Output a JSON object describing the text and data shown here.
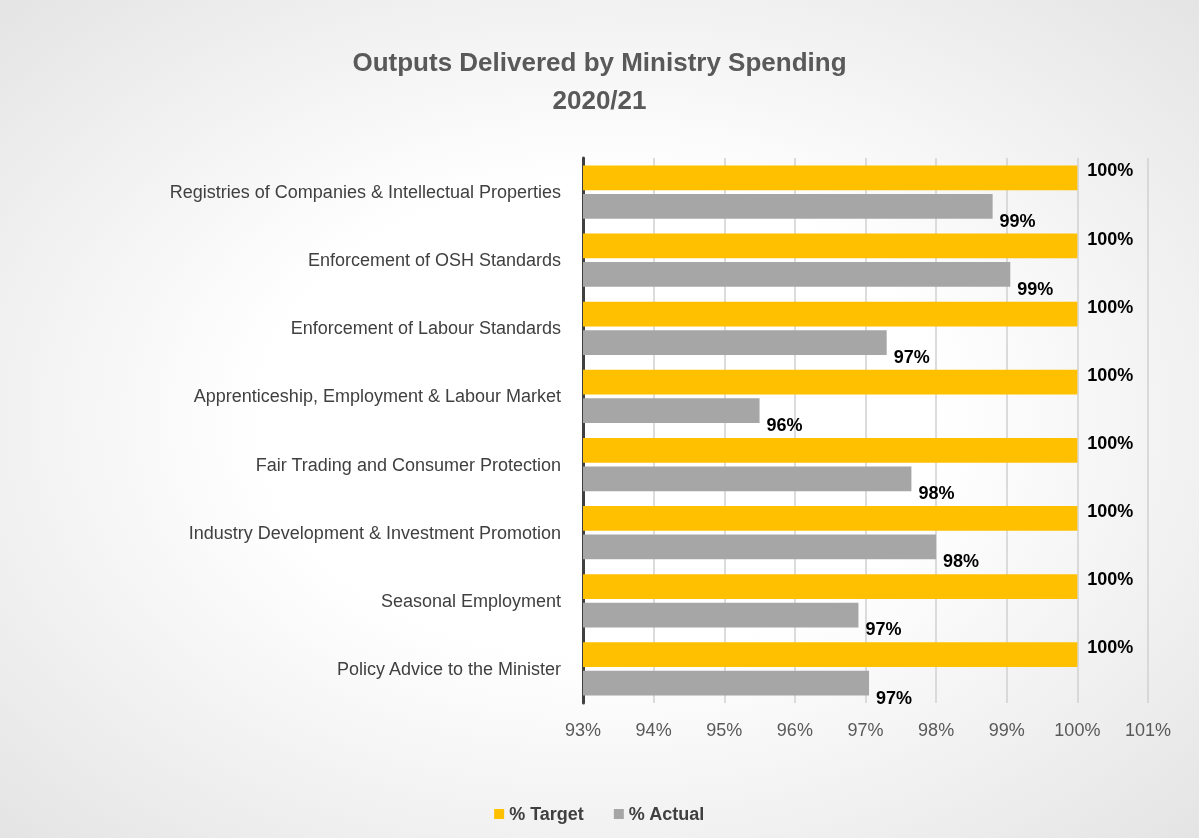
{
  "chart_data": {
    "type": "bar",
    "orientation": "horizontal",
    "title": "Outputs Delivered by Ministry Spending\n2020/21",
    "categories": [
      "Registries of Companies & Intellectual Properties",
      "Enforcement of OSH Standards",
      "Enforcement of Labour Standards",
      "Apprenticeship, Employment & Labour Market",
      "Fair Trading and Consumer Protection",
      "Industry Development & Investment Promotion",
      "Seasonal Employment",
      "Policy Advice to the Minister"
    ],
    "series": [
      {
        "name": "% Target",
        "color": "#ffc000",
        "values": [
          100,
          100,
          100,
          100,
          100,
          100,
          100,
          100
        ],
        "value_labels": [
          "100%",
          "100%",
          "100%",
          "100%",
          "100%",
          "100%",
          "100%",
          "100%"
        ]
      },
      {
        "name": "% Actual",
        "color": "#a6a6a6",
        "values": [
          98.8,
          99.05,
          97.3,
          95.5,
          97.65,
          98.0,
          96.9,
          97.05
        ],
        "value_labels": [
          "99%",
          "99%",
          "97%",
          "96%",
          "98%",
          "98%",
          "97%",
          "97%"
        ]
      }
    ],
    "xlim": [
      93,
      101
    ],
    "xticks": [
      {
        "value": 93,
        "label": "93%"
      },
      {
        "value": 94,
        "label": "94%"
      },
      {
        "value": 95,
        "label": "95%"
      },
      {
        "value": 96,
        "label": "96%"
      },
      {
        "value": 97,
        "label": "97%"
      },
      {
        "value": 98,
        "label": "98%"
      },
      {
        "value": 99,
        "label": "99%"
      },
      {
        "value": 100,
        "label": "100%"
      },
      {
        "value": 101,
        "label": "101%"
      }
    ],
    "grid": "x",
    "legend": "bottom"
  }
}
